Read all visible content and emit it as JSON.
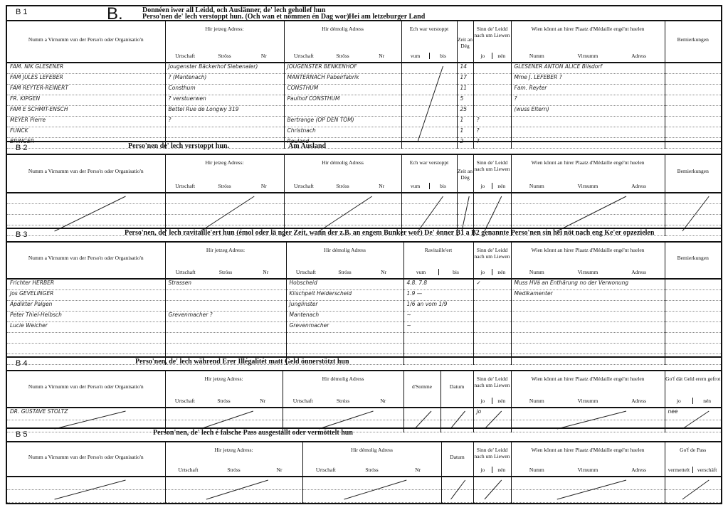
{
  "page_letter": "B.",
  "sections": [
    {
      "id": "B 1",
      "title_lines": [
        "Donnéen iwer all Leidd, och Auslänner, de' lech gehollef hun",
        "Perso'nen de' lech verstoppt hun. (Och wan et nömmen én Dag wor)"
      ],
      "title_right": "Hei am letzeburger Land",
      "columns": [
        {
          "label": "Numm a Virnumm vun der Perso'n oder Organisatio'n"
        },
        {
          "label": "Hir jetzeg Adress:",
          "sub": [
            "Urtschaft",
            "Ströss",
            "Nr"
          ]
        },
        {
          "label": "Hir démolig Adress",
          "sub": [
            "Urtschaft",
            "Ströss",
            "Nr"
          ]
        },
        {
          "label": "Ech war verstoppt",
          "sub": [
            "vum",
            "bis"
          ]
        },
        {
          "label": "Zeit an Dég"
        },
        {
          "label": "Sinn de' Leidd nach um Liewen",
          "sub": [
            "jo",
            "nén"
          ]
        },
        {
          "label": "Wien könnt an hirer Plaatz d'Médaille engé'nt huelen",
          "sub": [
            "Numm",
            "Virnumm",
            "Adress"
          ]
        },
        {
          "label": "Bemierkungen"
        }
      ],
      "rows": [
        [
          "FAM. NIK GLESENER",
          "Jougenster Bäckerhof Siebenaler)",
          "JOUGENSTER BENKENHOF",
          "",
          "14",
          "",
          "GLESENER ANTON ALICE   Bilsdorf",
          ""
        ],
        [
          "FAM JULES LEFEBER",
          "? (Mantenach)",
          "MANTERNACH Pabeirfabrik",
          "",
          "17",
          "",
          "Mme J. LEFEBER   ?",
          ""
        ],
        [
          "FAM REYTER-REINERT",
          "Consthum",
          "CONSTHUM",
          "",
          "11",
          "",
          "Fam. Reyter",
          ""
        ],
        [
          "FR. KIPGEN",
          "? verstuerwen",
          "Paulhof CONSTHUM",
          "",
          "5",
          "",
          "?",
          ""
        ],
        [
          "FAM E SCHMIT-ENSCH",
          "Bettel  Rue de Longwy 319",
          "",
          "",
          "25",
          "",
          "(wuss Eltern)",
          ""
        ],
        [
          "MEYER Pierre",
          "?",
          "Bertrange (OP DEN TOM)",
          "",
          "1",
          "?",
          "",
          ""
        ],
        [
          "FUNCK",
          "",
          "Christnach",
          "",
          "1",
          "?",
          "",
          ""
        ],
        [
          "BRINGER",
          "",
          "Reuland",
          "",
          "2",
          "?",
          "",
          ""
        ]
      ]
    },
    {
      "id": "B 2",
      "title_lines": [
        "Perso'nen de' lech verstoppt hun."
      ],
      "title_right": "Am Ausland",
      "columns": [
        {
          "label": "Numm a Virnumm vun der Perso'n oder Organisatio'n"
        },
        {
          "label": "Hir jetzeg Adress:",
          "sub": [
            "Urtschaft",
            "Stróss",
            "Nr"
          ]
        },
        {
          "label": "Hir démolig Adress",
          "sub": [
            "Urtschaft",
            "Stróss",
            "Nr"
          ]
        },
        {
          "label": "Ech war verstoppt",
          "sub": [
            "vum",
            "bis"
          ]
        },
        {
          "label": "Zeit an Dég"
        },
        {
          "label": "Sinn de' Leidd nach um Liewen",
          "sub": [
            "jo",
            "nén"
          ]
        },
        {
          "label": "Wien könnt an hirer Plaatz d'Médaille engé'nt huelen",
          "sub": [
            "Numm",
            "Virnumm",
            "Adress"
          ]
        },
        {
          "label": "Bemierkungen"
        }
      ],
      "rows": [
        [
          "",
          "",
          "",
          "",
          "",
          "",
          "",
          ""
        ],
        [
          "",
          "",
          "",
          "",
          "",
          "",
          "",
          ""
        ],
        [
          "",
          "",
          "",
          "",
          "",
          "",
          "",
          ""
        ],
        [
          "",
          "",
          "",
          "",
          "",
          "",
          "",
          ""
        ]
      ]
    },
    {
      "id": "B 3",
      "title_lines": [
        "Perso'nen, de' lech ravitaille'ert hun (émol oder lä nger Zeit, wann der z.B. an engem Bunker wor)  De' önner B1 a B2 genannte Perso'nen sin hei nöt nach eng Ke'er opzezielen"
      ],
      "title_right": "",
      "columns": [
        {
          "label": "Numm a Virnumm vun der Perso'n oder Organisatio'n"
        },
        {
          "label": "Hir jetzeg Adress:",
          "sub": [
            "Urtschaft",
            "Stróss",
            "Nr"
          ]
        },
        {
          "label": "Hir démolig Adress",
          "sub": [
            "Urtschaft",
            "Stróss",
            "Nr"
          ]
        },
        {
          "label": "Ravitaille'ert",
          "sub": [
            "vum",
            "bis"
          ]
        },
        {
          "label": "Sinn de' Leidd nach um Liewen",
          "sub": [
            "jo",
            "nén"
          ]
        },
        {
          "label": "Wien könnt an hirer Plaatz d'Médaille engé'nt huelen",
          "sub": [
            "Numm",
            "Virnumm",
            "Adress"
          ]
        },
        {
          "label": "Bemierkungen"
        }
      ],
      "rows": [
        [
          "Frichter HERBER",
          "Strassen",
          "Hobscheid",
          "4.8.   7.8",
          "✓",
          "Muss HVá an Enthärung no der Verwonung",
          ""
        ],
        [
          "Jos GEVELINGER",
          "",
          "Kiischpelt Heiderscheid",
          "1.9  —",
          "",
          "Medikamenter",
          ""
        ],
        [
          "Apdikter Palgen",
          "",
          "Junglinster",
          "1/6 an  vom 1/9",
          "",
          "",
          ""
        ],
        [
          "Peter Thiel-Heibsch",
          "Grevenmacher ?",
          "Mantenach",
          "~",
          "",
          "",
          ""
        ],
        [
          "Lucie Weicher",
          "",
          "Grevenmacher",
          "~",
          "",
          "",
          ""
        ],
        [
          "",
          "",
          "",
          "",
          "",
          "",
          ""
        ],
        [
          "",
          "",
          "",
          "",
          "",
          "",
          ""
        ],
        [
          "",
          "",
          "",
          "",
          "",
          "",
          ""
        ]
      ]
    },
    {
      "id": "B 4",
      "title_lines": [
        "Perso'nen, de' lech während Erer Illégalitét matt Geld önnerstötzt hun"
      ],
      "title_right": "",
      "columns": [
        {
          "label": "Numm a Virnumm vun der Perso'n oder Organisatio'n"
        },
        {
          "label": "Hir jetzeg Adress:",
          "sub": [
            "Urtschaft",
            "Stróss",
            "Nr"
          ]
        },
        {
          "label": "Hir démolig Adress",
          "sub": [
            "Urtschaft",
            "Stróss",
            "Nr"
          ]
        },
        {
          "label": "d'Somme"
        },
        {
          "label": "Datum"
        },
        {
          "label": "Sinn de' Leidd nach um Liewen",
          "sub": [
            "jo",
            "nén"
          ]
        },
        {
          "label": "Wien könnt an hirer Plaatz d'Médaille engé'nt huelen",
          "sub": [
            "Numm",
            "Virnumm",
            "Adress"
          ]
        },
        {
          "label": "Go'f dät Geld erem gefrot",
          "sub": [
            "jo",
            "nén"
          ]
        }
      ],
      "rows": [
        [
          "DR. GUSTAVE STOLTZ",
          "",
          "",
          "",
          "",
          "jo",
          "",
          "    nee"
        ],
        [
          "",
          "",
          "",
          "",
          "",
          "",
          "",
          ""
        ]
      ]
    },
    {
      "id": "B 5",
      "title_lines": [
        "Person'nen, de' lech é falsche Pass ausgestallt oder vermöttelt hun"
      ],
      "title_right": "",
      "columns": [
        {
          "label": "Numm a Virnumm vun der Perso'n oder Organisatio'n"
        },
        {
          "label": "Hir jetzeg Adress:",
          "sub": [
            "Urtschaft",
            "Stróss",
            "Nr"
          ]
        },
        {
          "label": "Hir démolig Adress",
          "sub": [
            "Urtschaft",
            "Stróss",
            "Nr"
          ]
        },
        {
          "label": "Datum"
        },
        {
          "label": "Sinn de' Leidd nach um Liewen",
          "sub": [
            "jo",
            "nén"
          ]
        },
        {
          "label": "Wien könnt an hirer Plaatz d'Médaille engé'nt huelen",
          "sub": [
            "Numm",
            "Virnumm",
            "Adress"
          ]
        },
        {
          "label": "Go'f de Pass",
          "sub": [
            "vermettelt",
            "verschäft"
          ]
        }
      ],
      "rows": [
        [
          "",
          "",
          "",
          "",
          "",
          "",
          ""
        ],
        [
          "",
          "",
          "",
          "",
          "",
          "",
          ""
        ]
      ]
    }
  ]
}
